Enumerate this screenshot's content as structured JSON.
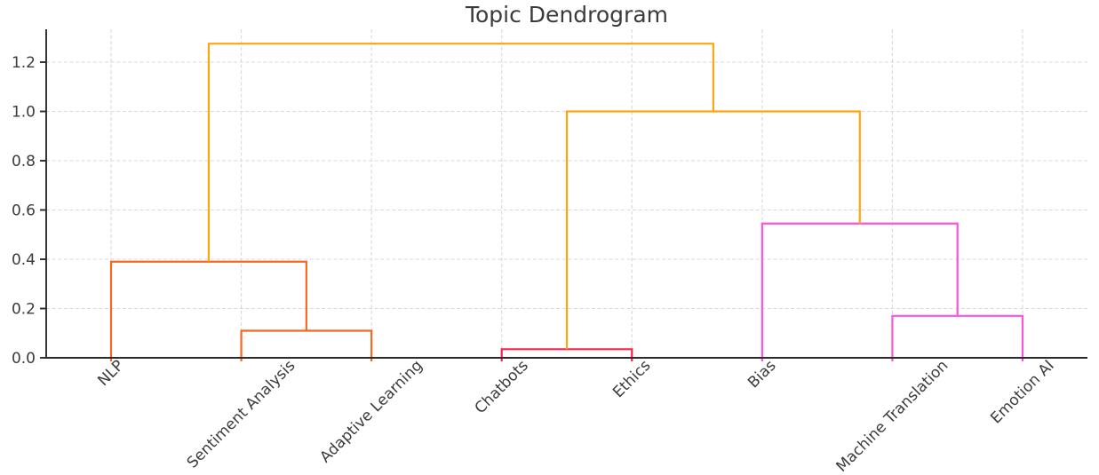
{
  "chart_data": {
    "type": "dendrogram",
    "title": "Topic Dendrogram",
    "leaves": [
      "NLP",
      "Sentiment Analysis",
      "Adaptive Learning",
      "Chatbots",
      "Ethics",
      "Bias",
      "Machine Translation",
      "Emotion AI"
    ],
    "merges": [
      {
        "a": "Sentiment Analysis",
        "b": "Adaptive Learning",
        "height": 0.11,
        "color": "orangered"
      },
      {
        "a": "NLP",
        "b": "@0",
        "height": 0.39,
        "color": "orangered"
      },
      {
        "a": "Chatbots",
        "b": "Ethics",
        "height": 0.035,
        "color": "crimson"
      },
      {
        "a": "Machine Translation",
        "b": "Emotion AI",
        "height": 0.17,
        "color": "magenta"
      },
      {
        "a": "Bias",
        "b": "@3",
        "height": 0.545,
        "color": "magenta"
      },
      {
        "a": "@2",
        "b": "@4",
        "height": 1.0,
        "color": "amber"
      },
      {
        "a": "@1",
        "b": "@5",
        "height": 1.275,
        "color": "amber"
      }
    ],
    "palette": {
      "amber": "#FFA510",
      "orangered": "#F86721",
      "crimson": "#F2254F",
      "magenta": "#FA54D7"
    },
    "yticks": [
      "0.0",
      "0.2",
      "0.4",
      "0.6",
      "0.8",
      "1.0",
      "1.2"
    ],
    "ylim": [
      0,
      1.33
    ],
    "grid": {
      "show": true,
      "style": "dashed"
    },
    "axis_color": "#2b2b2b",
    "label_color": "#3b3b3b",
    "xlabel_rotation": 45
  }
}
